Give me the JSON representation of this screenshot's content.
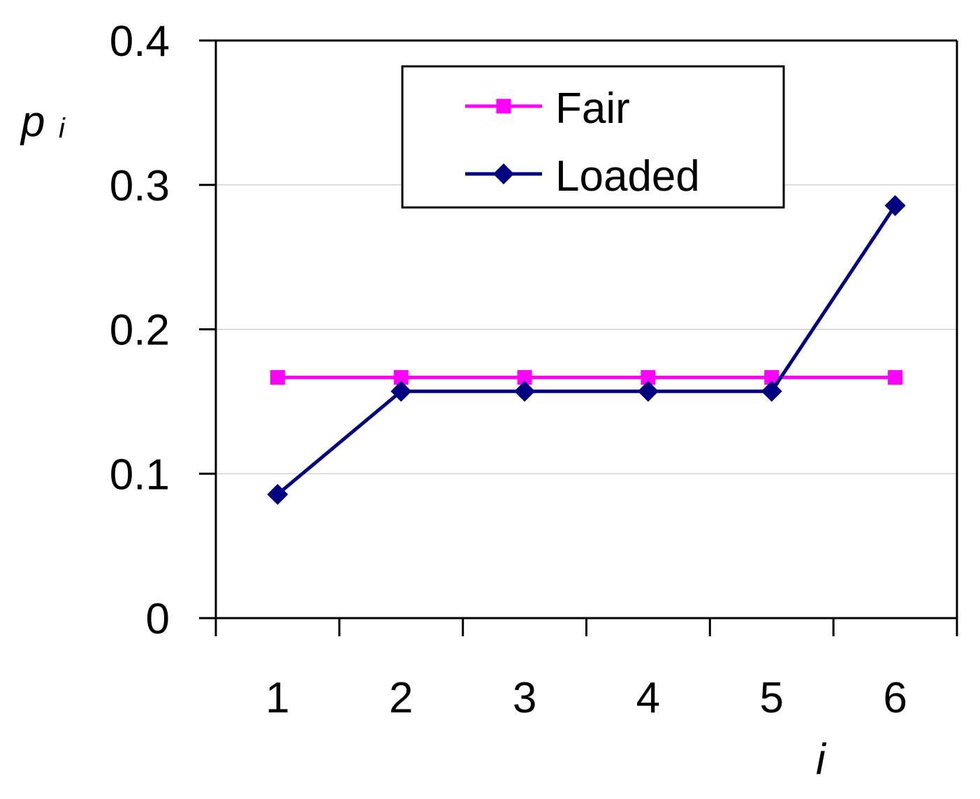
{
  "chart_data": {
    "type": "line",
    "categories": [
      "1",
      "2",
      "3",
      "4",
      "5",
      "6"
    ],
    "series": [
      {
        "name": "Fair",
        "values": [
          0.1667,
          0.1667,
          0.1667,
          0.1667,
          0.1667,
          0.1667
        ],
        "color": "#ff00ff",
        "marker": "square"
      },
      {
        "name": "Loaded",
        "values": [
          0.0857,
          0.1571,
          0.1571,
          0.1571,
          0.1571,
          0.2857
        ],
        "color": "#000080",
        "marker": "diamond"
      }
    ],
    "xlabel": "i",
    "ylabel": {
      "main": "p",
      "sub": "i"
    },
    "ylim": [
      0,
      0.4
    ],
    "yticks": [
      "0",
      "0.1",
      "0.2",
      "0.3",
      "0.4"
    ],
    "grid": true,
    "legend": "top-center"
  }
}
